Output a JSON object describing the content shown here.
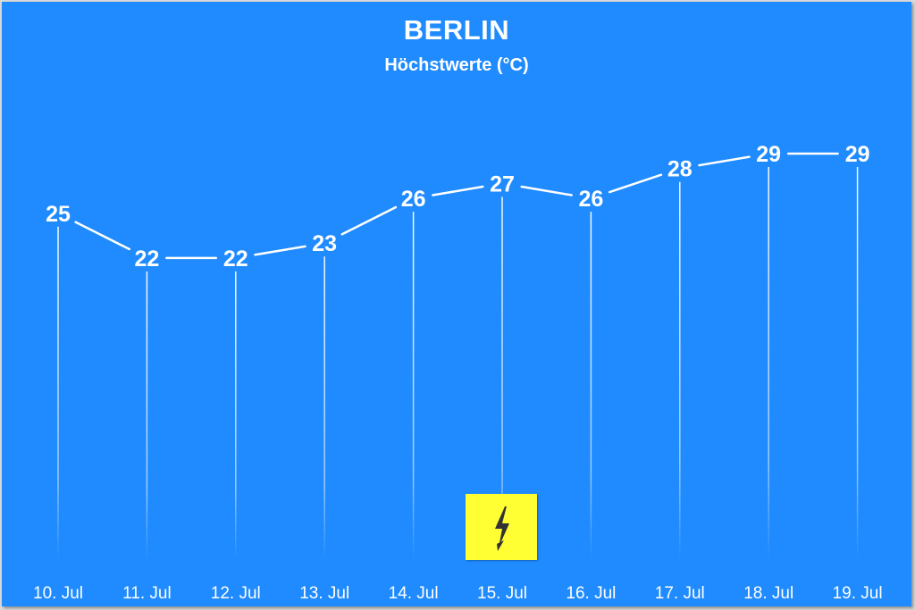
{
  "colors": {
    "background": "#1f8bff",
    "line": "#ffffff",
    "text": "#ffffff",
    "warning_badge": "#ffff33",
    "warning_icon": "#333333"
  },
  "chart_data": {
    "type": "line",
    "title": "BERLIN",
    "subtitle": "Höchstwerte (°C)",
    "categories": [
      "10. Jul",
      "11. Jul",
      "12. Jul",
      "13. Jul",
      "14. Jul",
      "15. Jul",
      "16. Jul",
      "17. Jul",
      "18. Jul",
      "19. Jul"
    ],
    "series": [
      {
        "values": [
          25,
          22,
          22,
          23,
          26,
          27,
          26,
          28,
          29,
          29
        ]
      }
    ],
    "data_labels": true,
    "grid": false,
    "legend": "none",
    "annotations": [
      {
        "category": "15. Jul",
        "icon": "lightning-warning-icon"
      }
    ]
  }
}
